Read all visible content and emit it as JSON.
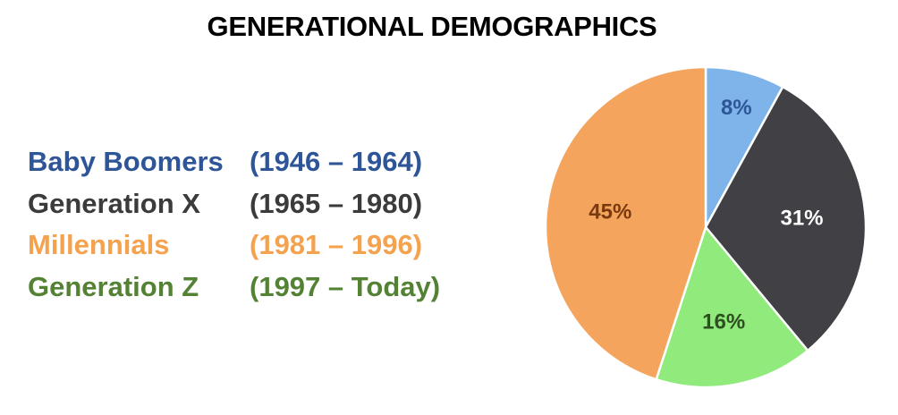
{
  "title": "GENERATIONAL DEMOGRAPHICS",
  "legend": [
    {
      "name": "Baby Boomers",
      "years": "(1946 – 1964)",
      "color": "#2E5597"
    },
    {
      "name": "Generation X",
      "years": "(1965 – 1980)",
      "color": "#3B3B3B"
    },
    {
      "name": "Millennials",
      "years": "(1981 – 1996)",
      "color": "#F4A24E"
    },
    {
      "name": "Generation Z",
      "years": "(1997 – Today)",
      "color": "#548235"
    }
  ],
  "chart_data": {
    "type": "pie",
    "title": "GENERATIONAL DEMOGRAPHICS",
    "slices": [
      {
        "label": "Baby Boomers",
        "value": 8,
        "display": "8%",
        "color": "#7EB4EA",
        "label_color": "#2E5597"
      },
      {
        "label": "Generation X",
        "value": 31,
        "display": "31%",
        "color": "#404045",
        "label_color": "#FFFFFF"
      },
      {
        "label": "Generation Z",
        "value": 16,
        "display": "16%",
        "color": "#90EA7C",
        "label_color": "#2E4F1F"
      },
      {
        "label": "Millennials",
        "value": 45,
        "display": "45%",
        "color": "#F4A45C",
        "label_color": "#7A3A10"
      }
    ],
    "start_angle_deg": 0,
    "direction": "clockwise"
  }
}
